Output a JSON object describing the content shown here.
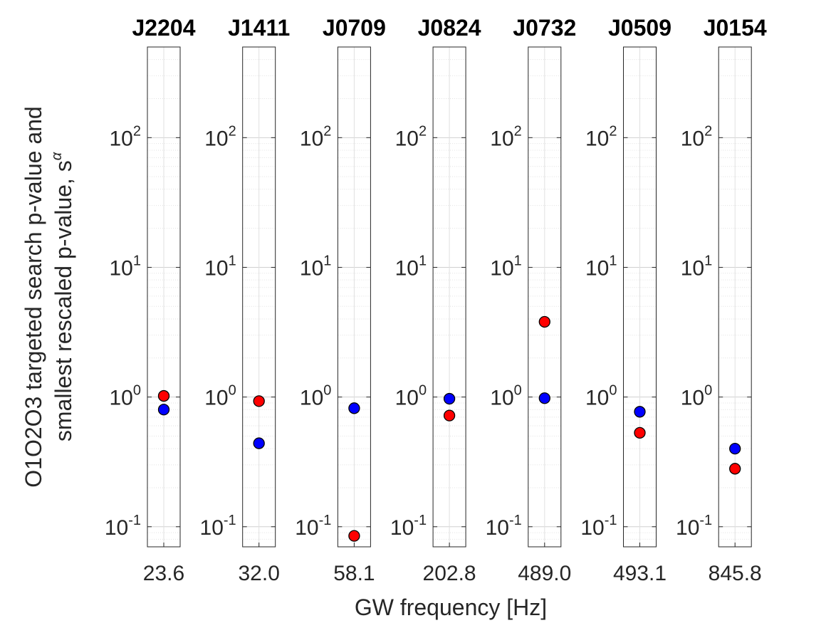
{
  "chart_data": {
    "type": "scatter",
    "layout": "small-multiples",
    "xlabel": "GW frequency [Hz]",
    "ylabel_line1": "O1O2O3 targeted search p-value and",
    "ylabel_line2": "smallest rescaled p-value, s",
    "ylabel_superscript": "α",
    "yscale": "log",
    "ylim": [
      0.07,
      500
    ],
    "yticks": [
      {
        "value": 0.1,
        "base": "10",
        "exp": "-1"
      },
      {
        "value": 1,
        "base": "10",
        "exp": "0"
      },
      {
        "value": 10,
        "base": "10",
        "exp": "1"
      },
      {
        "value": 100,
        "base": "10",
        "exp": "2"
      }
    ],
    "grid": true,
    "series_colors": {
      "targeted": "#0000ff",
      "rescaled": "#ff0000"
    },
    "panels": [
      {
        "title": "J2204",
        "freq_label": "23.6",
        "red": 1.02,
        "blue": 0.8
      },
      {
        "title": "J1411",
        "freq_label": "32.0",
        "red": 0.93,
        "blue": 0.44
      },
      {
        "title": "J0709",
        "freq_label": "58.1",
        "red": 0.085,
        "blue": 0.82
      },
      {
        "title": "J0824",
        "freq_label": "202.8",
        "red": 0.72,
        "blue": 0.97
      },
      {
        "title": "J0732",
        "freq_label": "489.0",
        "red": 3.8,
        "blue": 0.98
      },
      {
        "title": "J0509",
        "freq_label": "493.1",
        "red": 0.53,
        "blue": 0.77
      },
      {
        "title": "J0154",
        "freq_label": "845.8",
        "red": 0.28,
        "blue": 0.4
      }
    ]
  }
}
